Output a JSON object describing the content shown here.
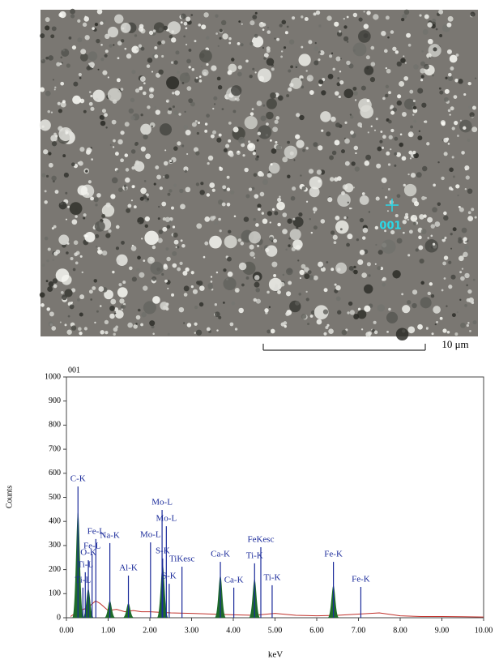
{
  "image": {
    "marker_label": "001",
    "scale_bar_label": "10 μm"
  },
  "chart_data": {
    "type": "spectrum",
    "title": "001",
    "xlabel": "keV",
    "ylabel": "Counts",
    "xlim": [
      0,
      10
    ],
    "ylim": [
      0,
      1000
    ],
    "xticks": [
      {
        "value": 0,
        "label": "0.00"
      },
      {
        "value": 1,
        "label": "1.00"
      },
      {
        "value": 2,
        "label": "2.00"
      },
      {
        "value": 3,
        "label": "3.00"
      },
      {
        "value": 4,
        "label": "4.00"
      },
      {
        "value": 5,
        "label": "5.00"
      },
      {
        "value": 6,
        "label": "6.00"
      },
      {
        "value": 7,
        "label": "7.00"
      },
      {
        "value": 8,
        "label": "8.00"
      },
      {
        "value": 9,
        "label": "9.00"
      },
      {
        "value": 10,
        "label": "10.00"
      }
    ],
    "yticks": [
      0,
      100,
      200,
      300,
      400,
      500,
      600,
      700,
      800,
      900,
      1000
    ],
    "background": {
      "color": "#c0302a",
      "x": [
        0.1,
        0.3,
        0.5,
        0.6,
        0.7,
        0.8,
        0.9,
        1.0,
        1.2,
        1.4,
        1.6,
        1.8,
        2.0,
        2.5,
        3.0,
        3.5,
        4.0,
        4.5,
        5.0,
        5.5,
        6.0,
        6.5,
        7.0,
        7.5,
        8.0,
        8.5,
        9.0,
        9.5,
        10.0
      ],
      "values": [
        5,
        30,
        40,
        55,
        70,
        60,
        45,
        30,
        35,
        25,
        30,
        25,
        25,
        20,
        18,
        15,
        12,
        10,
        18,
        10,
        8,
        10,
        15,
        20,
        8,
        5,
        5,
        4,
        3
      ]
    },
    "peaks": {
      "color": "#1e6b2a",
      "x": [
        0.277,
        0.525,
        1.041,
        1.486,
        2.307,
        3.69,
        4.51,
        6.4
      ],
      "values": [
        440,
        120,
        70,
        60,
        220,
        175,
        160,
        135
      ]
    },
    "annotations": [
      {
        "label": "C-K",
        "x": 0.277,
        "height": 545
      },
      {
        "label": "Fe-L",
        "x": 0.705,
        "height": 327
      },
      {
        "label": "Na-K",
        "x": 1.041,
        "height": 310
      },
      {
        "label": "Fe-L",
        "x": 0.615,
        "height": 266
      },
      {
        "label": "O-K",
        "x": 0.525,
        "height": 239
      },
      {
        "label": "Ti-L",
        "x": 0.452,
        "height": 189
      },
      {
        "label": "Ti-L",
        "x": 0.395,
        "height": 125
      },
      {
        "label": "Al-K",
        "x": 1.486,
        "height": 175
      },
      {
        "label": "Mo-L",
        "x": 2.293,
        "height": 448
      },
      {
        "label": "Mo-L",
        "x": 2.395,
        "height": 380
      },
      {
        "label": "Mo-L",
        "x": 2.016,
        "height": 313
      },
      {
        "label": "S-K",
        "x": 2.307,
        "height": 246
      },
      {
        "label": "S-K",
        "x": 2.464,
        "height": 141
      },
      {
        "label": "TiKesc",
        "x": 2.77,
        "height": 212
      },
      {
        "label": "Ca-K",
        "x": 3.69,
        "height": 232
      },
      {
        "label": "Ca-K",
        "x": 4.012,
        "height": 125
      },
      {
        "label": "FeKesc",
        "x": 4.66,
        "height": 293
      },
      {
        "label": "Ti-K",
        "x": 4.51,
        "height": 226
      },
      {
        "label": "Ti-K",
        "x": 4.931,
        "height": 135
      },
      {
        "label": "Fe-K",
        "x": 6.4,
        "height": 232
      },
      {
        "label": "Fe-K",
        "x": 7.057,
        "height": 128
      }
    ]
  }
}
